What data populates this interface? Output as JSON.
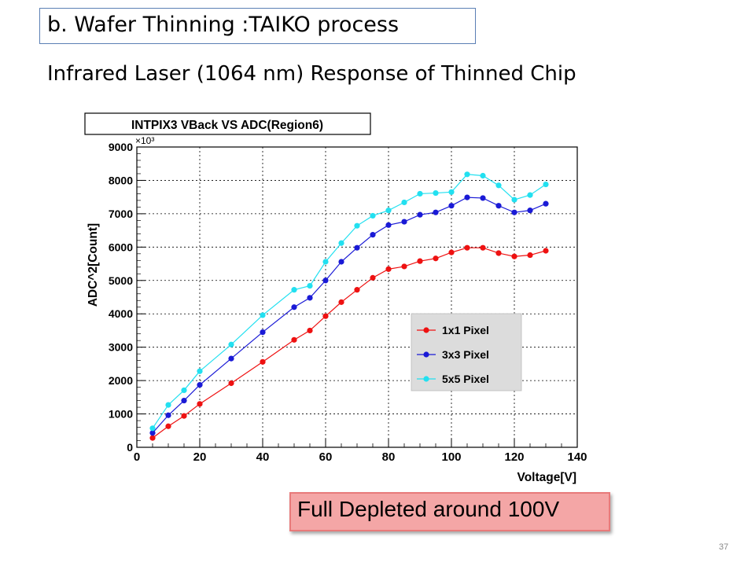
{
  "slide": {
    "heading": "b. Wafer Thinning :TAIKO process",
    "subheading": "Infrared Laser (1064 nm) Response of Thinned Chip",
    "callout": "Full Depleted around 100V",
    "page_number": "37"
  },
  "chart_data": {
    "type": "line",
    "title": "INTPIX3 VBack VS ADC(Region6)",
    "xlabel": "Voltage[V]",
    "ylabel": "ADC^2[Count]",
    "y_multiplier": "×10³",
    "xlim": [
      0,
      140
    ],
    "ylim": [
      0,
      9000
    ],
    "x_ticks": [
      0,
      20,
      40,
      60,
      80,
      100,
      120,
      140
    ],
    "y_ticks": [
      0,
      1000,
      2000,
      3000,
      4000,
      5000,
      6000,
      7000,
      8000,
      9000
    ],
    "grid": true,
    "legend_position": "lower-right",
    "series": [
      {
        "name": "1x1 Pixel",
        "color": "#ee1111",
        "x": [
          5,
          10,
          15,
          20,
          30,
          40,
          50,
          55,
          60,
          65,
          70,
          75,
          80,
          85,
          90,
          95,
          100,
          105,
          110,
          115,
          120,
          125,
          130
        ],
        "y": [
          280,
          630,
          940,
          1300,
          1920,
          2560,
          3220,
          3500,
          3930,
          4350,
          4720,
          5080,
          5340,
          5420,
          5580,
          5660,
          5840,
          5980,
          5980,
          5820,
          5720,
          5760,
          5890
        ]
      },
      {
        "name": "3x3 Pixel",
        "color": "#1a1ad6",
        "x": [
          5,
          10,
          15,
          20,
          30,
          40,
          50,
          55,
          60,
          65,
          70,
          75,
          80,
          85,
          90,
          95,
          100,
          105,
          110,
          115,
          120,
          125,
          130
        ],
        "y": [
          430,
          960,
          1400,
          1870,
          2660,
          3450,
          4200,
          4480,
          5000,
          5560,
          5980,
          6370,
          6660,
          6760,
          6970,
          7040,
          7240,
          7490,
          7470,
          7240,
          7040,
          7100,
          7300
        ]
      },
      {
        "name": "5x5 Pixel",
        "color": "#22e0f0",
        "x": [
          5,
          10,
          15,
          20,
          30,
          40,
          50,
          55,
          60,
          65,
          70,
          75,
          80,
          85,
          90,
          95,
          100,
          105,
          110,
          115,
          120,
          125,
          130
        ],
        "y": [
          570,
          1270,
          1710,
          2280,
          3080,
          3960,
          4720,
          4840,
          5560,
          6120,
          6640,
          6940,
          7100,
          7340,
          7600,
          7620,
          7650,
          8180,
          8140,
          7850,
          7420,
          7560,
          7880
        ]
      }
    ]
  }
}
